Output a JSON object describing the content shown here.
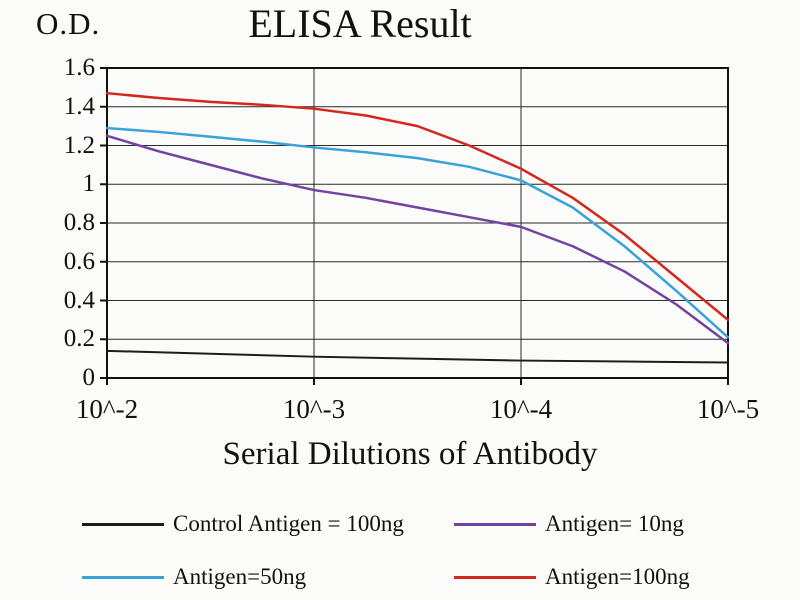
{
  "chart_data": {
    "type": "line",
    "title": "ELISA Result",
    "ylabel": "O.D.",
    "xlabel": "Serial Dilutions of Antibody",
    "categories": [
      "10^-2",
      "10^-3",
      "10^-4",
      "10^-5"
    ],
    "y_ticks": [
      0,
      0.2,
      0.4,
      0.6,
      0.8,
      1,
      1.2,
      1.4,
      1.6
    ],
    "y_tick_labels": [
      "0",
      "0.2",
      "0.4",
      "0.6",
      "0.8",
      "1",
      "1.2",
      "1.4",
      "1.6"
    ],
    "ylim": [
      0,
      1.6
    ],
    "grid": true,
    "legend_position": "below",
    "series": [
      {
        "name": "Control Antigen = 100ng",
        "color": "#1c1c1c",
        "stroke_width": 2,
        "values": [
          0.14,
          0.11,
          0.09,
          0.08
        ],
        "points": {
          "x": [
            0,
            0.5,
            1,
            1.5,
            2,
            2.5,
            3
          ],
          "y": [
            0.14,
            0.125,
            0.11,
            0.1,
            0.09,
            0.085,
            0.08
          ]
        }
      },
      {
        "name": "Antigen= 10ng",
        "color": "#7442a0",
        "stroke_width": 2.5,
        "values": [
          1.25,
          0.97,
          0.78,
          0.18
        ],
        "points": {
          "x": [
            0,
            0.25,
            0.5,
            0.75,
            1,
            1.25,
            1.5,
            1.75,
            2,
            2.25,
            2.5,
            2.75,
            3
          ],
          "y": [
            1.25,
            1.17,
            1.1,
            1.03,
            0.97,
            0.93,
            0.88,
            0.83,
            0.78,
            0.68,
            0.55,
            0.38,
            0.18
          ]
        }
      },
      {
        "name": "Antigen=50ng",
        "color": "#39a2da",
        "stroke_width": 2.5,
        "values": [
          1.29,
          1.19,
          1.02,
          0.21
        ],
        "points": {
          "x": [
            0,
            0.25,
            0.5,
            0.75,
            1,
            1.25,
            1.5,
            1.75,
            2,
            2.25,
            2.5,
            2.75,
            3
          ],
          "y": [
            1.29,
            1.27,
            1.245,
            1.22,
            1.19,
            1.165,
            1.135,
            1.09,
            1.02,
            0.88,
            0.68,
            0.45,
            0.21
          ]
        }
      },
      {
        "name": "Antigen=100ng",
        "color": "#d2281e",
        "stroke_width": 2.5,
        "values": [
          1.47,
          1.39,
          1.08,
          0.3
        ],
        "points": {
          "x": [
            0,
            0.25,
            0.5,
            0.75,
            1,
            1.25,
            1.5,
            1.75,
            2,
            2.25,
            2.5,
            2.75,
            3
          ],
          "y": [
            1.47,
            1.445,
            1.425,
            1.41,
            1.39,
            1.355,
            1.3,
            1.2,
            1.08,
            0.93,
            0.74,
            0.52,
            0.3
          ]
        }
      }
    ],
    "legend_order": [
      0,
      1,
      2,
      3
    ]
  },
  "plot_style": {
    "grid_color": "#2a2a2a",
    "border_color": "#111111",
    "background": "#fbfbf9"
  }
}
